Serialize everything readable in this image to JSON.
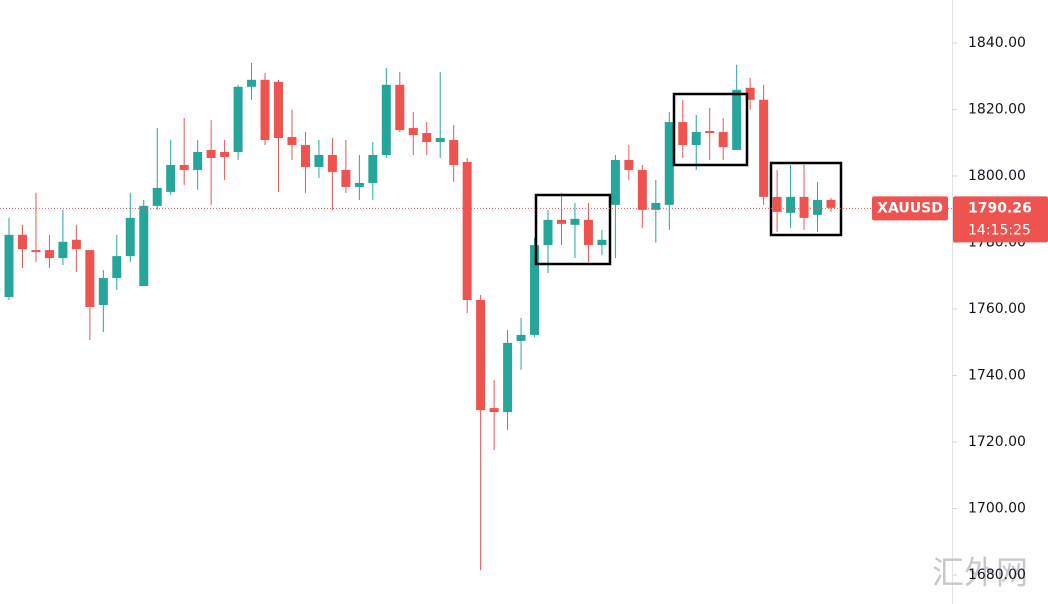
{
  "chart_data": {
    "type": "candlestick",
    "symbol": "XAUUSD",
    "last_price": 1790.26,
    "countdown": "14:15:25",
    "watermark": "汇外网",
    "up_color": "#26a69a",
    "down_color": "#ef5350",
    "ylim": [
      1671.3,
      1852.9
    ],
    "yticks": [
      {
        "value": 1680,
        "label": "1680.00"
      },
      {
        "value": 1700,
        "label": "1700.00"
      },
      {
        "value": 1720,
        "label": "1720.00"
      },
      {
        "value": 1740,
        "label": "1740.00"
      },
      {
        "value": 1760,
        "label": "1760.00"
      },
      {
        "value": 1780,
        "label": "1780.00"
      },
      {
        "value": 1800,
        "label": "1800.00"
      },
      {
        "value": 1820,
        "label": "1820.00"
      },
      {
        "value": 1840,
        "label": "1840.00"
      }
    ],
    "open": [
      1763.6,
      1782.3,
      1777.7,
      1777.7,
      1775.3,
      1780.8,
      1777.7,
      1761.2,
      1769.3,
      1775.9,
      1766.9,
      1791.0,
      1795.2,
      1803.3,
      1801.8,
      1807.8,
      1807.2,
      1807.2,
      1826.8,
      1828.9,
      1828.3,
      1811.7,
      1809.3,
      1802.7,
      1806.3,
      1801.8,
      1796.7,
      1797.9,
      1806.3,
      1827.4,
      1814.4,
      1812.9,
      1810.2,
      1810.8,
      1804.2,
      1762.7,
      1730.2,
      1729.0,
      1750.4,
      1752.2,
      1779.2,
      1786.8,
      1785.3,
      1786.8,
      1779.2,
      1791.3,
      1804.8,
      1801.8,
      1789.8,
      1791.3,
      1816.2,
      1809.3,
      1813.5,
      1813.2,
      1807.8,
      1826.5,
      1822.9,
      1793.7,
      1788.9,
      1793.7,
      1788.3,
      1792.8
    ],
    "high": [
      1787.4,
      1785.3,
      1794.9,
      1782.3,
      1789.8,
      1785.3,
      1777.7,
      1771.7,
      1782.3,
      1794.9,
      1792.8,
      1814.4,
      1810.8,
      1817.4,
      1810.8,
      1816.8,
      1810.8,
      1827.4,
      1834.0,
      1831.0,
      1828.9,
      1819.9,
      1813.2,
      1810.8,
      1811.4,
      1810.8,
      1806.3,
      1810.2,
      1832.5,
      1831.3,
      1819.2,
      1816.2,
      1831.3,
      1815.3,
      1805.4,
      1764.2,
      1738.6,
      1753.7,
      1757.3,
      1781.4,
      1789.8,
      1794.9,
      1791.9,
      1791.9,
      1783.8,
      1806.3,
      1809.3,
      1803.3,
      1798.8,
      1819.2,
      1822.9,
      1818.3,
      1820.5,
      1817.4,
      1833.4,
      1829.5,
      1827.4,
      1801.8,
      1803.3,
      1803.3,
      1798.2,
      1793.4
    ],
    "low": [
      1762.7,
      1772.3,
      1774.1,
      1772.3,
      1773.2,
      1771.1,
      1750.7,
      1753.1,
      1765.7,
      1774.1,
      1766.9,
      1789.8,
      1794.3,
      1797.3,
      1795.8,
      1791.3,
      1798.8,
      1804.8,
      1822.9,
      1809.3,
      1795.2,
      1804.8,
      1794.9,
      1799.4,
      1789.8,
      1794.9,
      1792.8,
      1792.8,
      1805.4,
      1813.2,
      1806.3,
      1806.3,
      1805.4,
      1798.2,
      1758.8,
      1681.5,
      1717.6,
      1723.6,
      1741.7,
      1751.6,
      1770.8,
      1779.2,
      1775.3,
      1774.1,
      1776.2,
      1775.3,
      1798.8,
      1784.4,
      1779.9,
      1783.8,
      1805.4,
      1801.8,
      1804.8,
      1804.8,
      1807.8,
      1819.9,
      1791.3,
      1783.2,
      1784.4,
      1783.8,
      1783.2,
      1789.2
    ],
    "close": [
      1782.3,
      1778.0,
      1777.1,
      1775.3,
      1780.2,
      1778.0,
      1760.6,
      1769.3,
      1775.9,
      1787.4,
      1791.0,
      1796.4,
      1803.3,
      1801.8,
      1807.2,
      1805.4,
      1805.7,
      1826.8,
      1828.9,
      1810.8,
      1811.4,
      1809.3,
      1802.7,
      1806.3,
      1801.2,
      1796.7,
      1797.9,
      1806.3,
      1827.4,
      1813.8,
      1812.3,
      1810.2,
      1811.4,
      1803.3,
      1762.7,
      1729.6,
      1729.0,
      1749.8,
      1752.2,
      1779.2,
      1786.8,
      1785.6,
      1787.1,
      1779.2,
      1780.8,
      1804.8,
      1801.8,
      1789.8,
      1791.9,
      1816.2,
      1809.3,
      1813.2,
      1812.9,
      1808.7,
      1825.9,
      1822.9,
      1793.7,
      1789.2,
      1793.7,
      1787.4,
      1792.8,
      1790.4
    ]
  }
}
